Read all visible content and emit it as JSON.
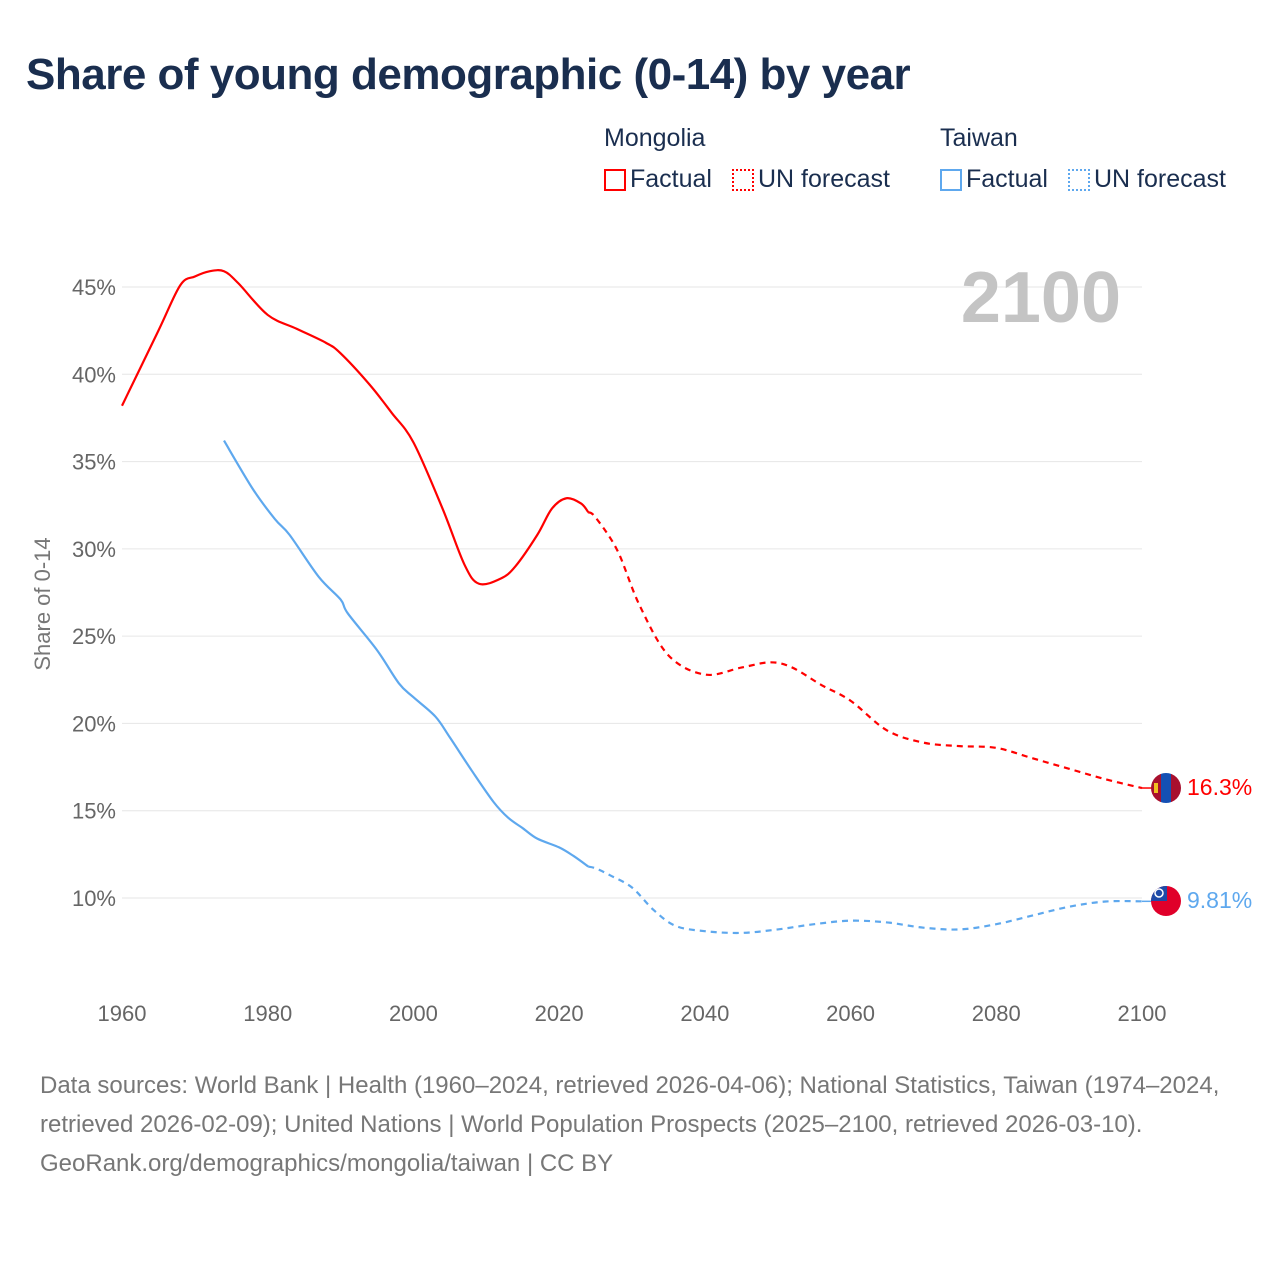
{
  "title": "Share of young demographic (0-14) by year",
  "legend": {
    "groups": [
      {
        "name": "Mongolia",
        "factual": "Factual",
        "forecast": "UN forecast",
        "color": "#ff0000"
      },
      {
        "name": "Taiwan",
        "factual": "Factual",
        "forecast": "UN forecast",
        "color": "#5ea8ee"
      }
    ]
  },
  "footer": {
    "sources": "Data sources: World Bank | Health (1960–2024, retrieved 2026-04-06); National Statistics, Taiwan (1974–2024, retrieved 2026-02-09); United Nations | World Population Prospects (2025–2100, retrieved 2026-03-10).",
    "link": "GeoRank.org/demographics/mongolia/taiwan | CC BY"
  },
  "chart_data": {
    "type": "line",
    "title": "Share of young demographic (0-14) by year",
    "year_watermark": "2100",
    "xlabel": "",
    "ylabel": "Share of 0-14",
    "xlim": [
      1960,
      2100
    ],
    "ylim": [
      5,
      47
    ],
    "x_ticks": [
      1960,
      1980,
      2000,
      2020,
      2040,
      2060,
      2080,
      2100
    ],
    "x_tick_labels": [
      "1960",
      "1980",
      "2000",
      "2020",
      "2040",
      "2060",
      "2080",
      "2100"
    ],
    "y_ticks": [
      10,
      15,
      20,
      25,
      30,
      35,
      40,
      45
    ],
    "y_tick_labels": [
      "10%",
      "15%",
      "20%",
      "25%",
      "30%",
      "35%",
      "40%",
      "45%"
    ],
    "grid": true,
    "legend_position": "top-right",
    "series": [
      {
        "name": "Mongolia",
        "color": "#ff0000",
        "end_label": "16.3%",
        "factual": {
          "x": [
            1960,
            1965,
            1968,
            1970,
            1972,
            1974,
            1976,
            1980,
            1984,
            1988,
            1990,
            1994,
            1997,
            2000,
            2004,
            2007,
            2009,
            2012,
            2014,
            2017,
            2019,
            2021,
            2023,
            2024
          ],
          "y": [
            38.2,
            42.5,
            45.1,
            45.6,
            45.9,
            45.9,
            45.2,
            43.4,
            42.6,
            41.8,
            41.2,
            39.4,
            37.8,
            36.1,
            32.3,
            29.1,
            28.0,
            28.3,
            29.0,
            30.8,
            32.3,
            32.9,
            32.6,
            32.1
          ]
        },
        "forecast": {
          "x": [
            2024,
            2025,
            2028,
            2031,
            2035,
            2040,
            2045,
            2049,
            2052,
            2056,
            2060,
            2065,
            2070,
            2075,
            2080,
            2085,
            2090,
            2095,
            2100
          ],
          "y": [
            32.1,
            31.8,
            29.9,
            26.8,
            23.9,
            22.8,
            23.2,
            23.5,
            23.2,
            22.2,
            21.3,
            19.6,
            18.9,
            18.7,
            18.6,
            18.0,
            17.4,
            16.8,
            16.3
          ]
        }
      },
      {
        "name": "Taiwan",
        "color": "#5ea8ee",
        "end_label": "9.81%",
        "factual": {
          "x": [
            1974,
            1978,
            1981,
            1983,
            1987,
            1990,
            1991,
            1995,
            1998,
            2000,
            2003,
            2005,
            2008,
            2011,
            2013,
            2015,
            2017,
            2020,
            2022,
            2024
          ],
          "y": [
            36.2,
            33.4,
            31.7,
            30.8,
            28.4,
            27.1,
            26.3,
            24.2,
            22.3,
            21.5,
            20.4,
            19.2,
            17.3,
            15.5,
            14.6,
            14.0,
            13.4,
            12.9,
            12.4,
            11.8
          ]
        },
        "forecast": {
          "x": [
            2024,
            2025,
            2027,
            2030,
            2033,
            2036,
            2040,
            2045,
            2050,
            2055,
            2060,
            2065,
            2070,
            2075,
            2080,
            2085,
            2090,
            2095,
            2100
          ],
          "y": [
            11.8,
            11.7,
            11.3,
            10.6,
            9.3,
            8.4,
            8.1,
            8.0,
            8.2,
            8.5,
            8.7,
            8.6,
            8.3,
            8.2,
            8.5,
            9.0,
            9.5,
            9.8,
            9.81
          ]
        }
      }
    ]
  }
}
